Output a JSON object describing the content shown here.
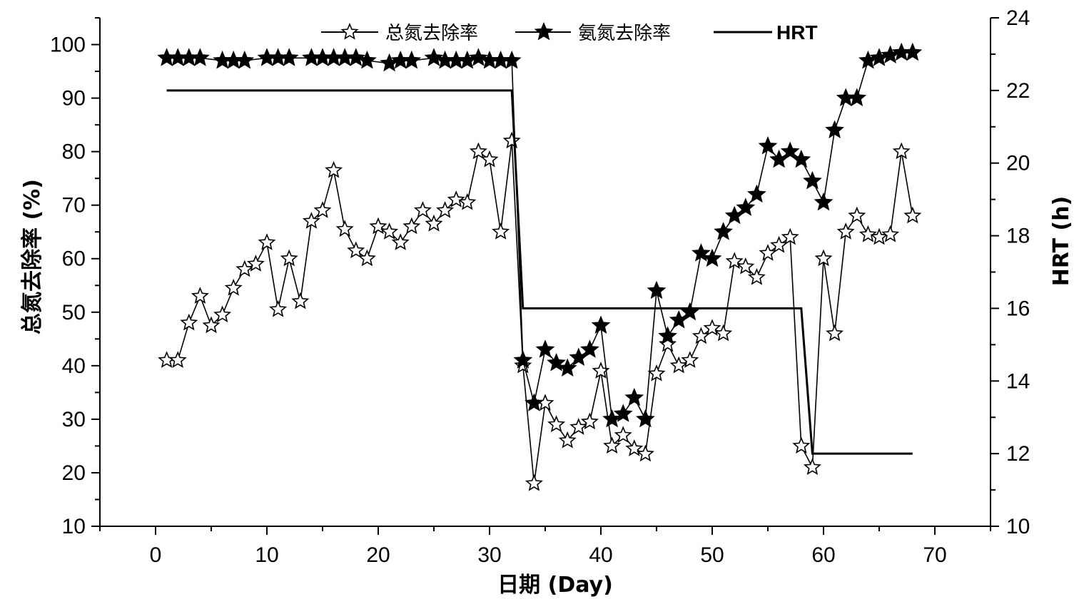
{
  "chart_data": {
    "type": "line",
    "xlabel": "日期 (Day)",
    "ylabel_left": "总氮去除率 (%)",
    "ylabel_right": "HRT (h)",
    "xlim": [
      -5,
      75
    ],
    "ylim_left": [
      10,
      105
    ],
    "ylim_right": [
      10,
      24
    ],
    "x_ticks": [
      0,
      10,
      20,
      30,
      40,
      50,
      60,
      70
    ],
    "y_left_ticks": [
      10,
      20,
      30,
      40,
      50,
      60,
      70,
      80,
      90,
      100
    ],
    "y_right_ticks": [
      10,
      12,
      14,
      16,
      18,
      20,
      22,
      24
    ],
    "grid": false,
    "legend_position": "top",
    "series": [
      {
        "name": "总氮去除率",
        "axis": "left",
        "marker": "open-star",
        "x": [
          1,
          2,
          3,
          4,
          5,
          6,
          7,
          8,
          9,
          10,
          11,
          12,
          13,
          14,
          15,
          16,
          17,
          18,
          19,
          20,
          21,
          22,
          23,
          24,
          25,
          26,
          27,
          28,
          29,
          30,
          31,
          32,
          33,
          34,
          35,
          36,
          37,
          38,
          39,
          40,
          41,
          42,
          43,
          44,
          45,
          46,
          47,
          48,
          49,
          50,
          51,
          52,
          53,
          54,
          55,
          56,
          57,
          58,
          59,
          60,
          61,
          62,
          63,
          64,
          65,
          66,
          67,
          68
        ],
        "y": [
          41,
          41,
          48,
          53,
          47.5,
          49.5,
          54.5,
          58,
          59,
          63,
          50.5,
          60,
          52,
          67,
          69,
          76.5,
          65.5,
          61.5,
          60,
          66,
          65,
          63,
          66,
          69,
          66.5,
          69,
          71,
          70.5,
          80,
          78.5,
          65,
          82,
          40,
          18,
          33,
          29,
          26,
          28.5,
          29.5,
          39,
          25,
          27,
          24.5,
          23.5,
          38.5,
          44,
          40,
          41,
          45.5,
          47,
          46,
          59.5,
          58.5,
          56.5,
          61,
          62.5,
          64,
          25,
          21,
          60,
          46,
          65,
          68,
          64.5,
          64,
          64.5,
          80,
          68
        ]
      },
      {
        "name": "氨氮去除率",
        "axis": "left",
        "marker": "filled-star",
        "x": [
          1,
          2,
          3,
          4,
          6,
          7,
          8,
          10,
          11,
          12,
          14,
          15,
          16,
          17,
          18,
          19,
          21,
          22,
          23,
          25,
          26,
          27,
          28,
          29,
          30,
          31,
          32,
          33,
          34,
          35,
          36,
          37,
          38,
          39,
          40,
          41,
          42,
          43,
          44,
          45,
          46,
          47,
          48,
          49,
          50,
          51,
          52,
          53,
          54,
          55,
          56,
          57,
          58,
          59,
          60,
          61,
          62,
          63,
          64,
          65,
          66,
          67,
          68
        ],
        "y": [
          97.5,
          97.5,
          97.5,
          97.5,
          97,
          97,
          97,
          97.5,
          97.5,
          97.5,
          97.5,
          97.5,
          97.5,
          97.5,
          97.5,
          97,
          96.5,
          97,
          97,
          97.5,
          97,
          97,
          97,
          97.5,
          97,
          97,
          97,
          41,
          33,
          43,
          40.5,
          39.5,
          41.5,
          43,
          47.5,
          30,
          31,
          34,
          30,
          54,
          45.5,
          48.5,
          50,
          61,
          60,
          65,
          68,
          69.5,
          72,
          81,
          78.5,
          80,
          78.5,
          74.5,
          70.5,
          84,
          90,
          90,
          97,
          97.5,
          98,
          98.5,
          98.5
        ]
      },
      {
        "name": "HRT",
        "axis": "right",
        "marker": "none",
        "x": [
          1,
          32,
          33,
          58,
          59,
          68
        ],
        "y": [
          22,
          22,
          16,
          16,
          12,
          12
        ]
      }
    ]
  }
}
